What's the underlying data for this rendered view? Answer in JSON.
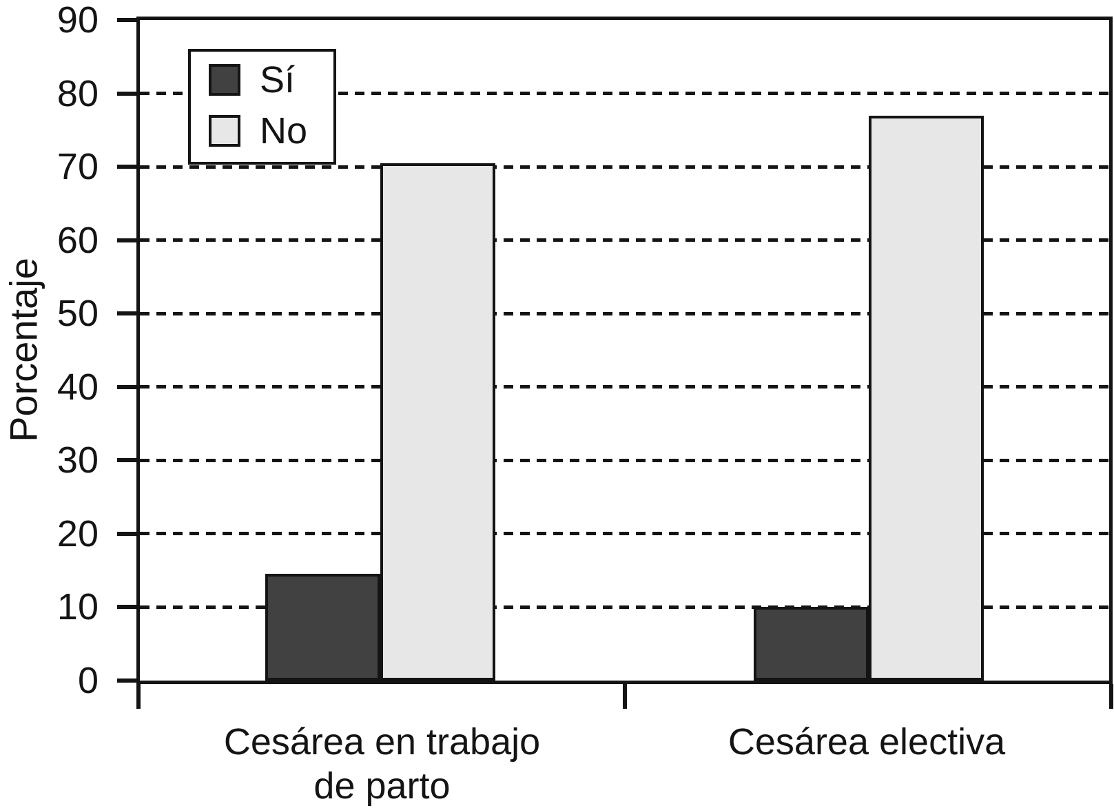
{
  "chart_data": {
    "type": "bar",
    "title": "",
    "xlabel": "",
    "ylabel": "Porcentaje",
    "ylim": [
      0,
      90
    ],
    "ytick_interval": 10,
    "yticks": [
      0,
      10,
      20,
      30,
      40,
      50,
      60,
      70,
      80,
      90
    ],
    "gridline_values": [
      10,
      20,
      30,
      40,
      50,
      60,
      70,
      80
    ],
    "grid_style": "horizontal dashed black lines, framed plot area",
    "categories": [
      {
        "label": "Cesárea en trabajo de parto",
        "lines": [
          "Cesárea en trabajo",
          "de parto"
        ]
      },
      {
        "label": "Cesárea electiva",
        "lines": [
          "Cesárea electiva"
        ]
      }
    ],
    "series": [
      {
        "name": "Sí",
        "color": "#414141",
        "values": [
          14.5,
          10
        ]
      },
      {
        "name": "No",
        "color": "#e7e7e7",
        "values": [
          70.5,
          77
        ]
      }
    ],
    "legend": {
      "position": "top-left",
      "entries": [
        "Sí",
        "No"
      ]
    },
    "colors": {
      "line": "#141414",
      "background": "#ffffff",
      "bar_si": "#414141",
      "bar_no": "#e7e7e7"
    }
  }
}
